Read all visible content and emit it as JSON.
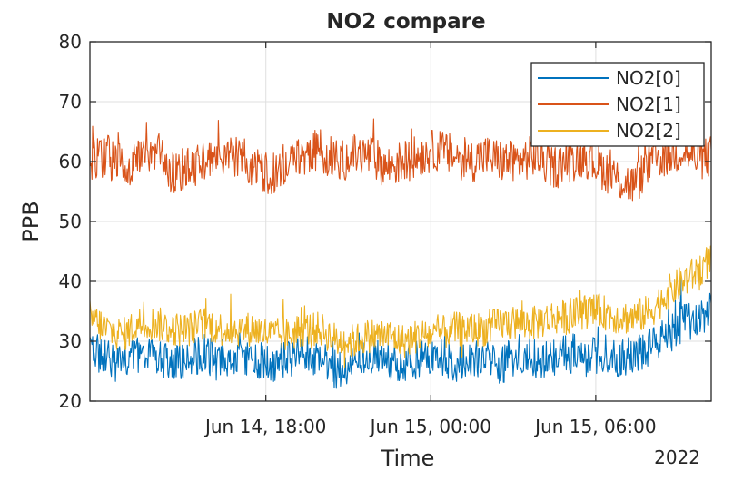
{
  "chart_data": {
    "type": "line",
    "title": "NO2 compare",
    "xlabel": "Time",
    "ylabel": "PPB",
    "x_secondary_label": "2022",
    "x_range_hours": [
      -6.4,
      16.2
    ],
    "x_ticks": [
      {
        "label": "Jun 14, 18:00",
        "hours": 0
      },
      {
        "label": "Jun 15, 00:00",
        "hours": 6
      },
      {
        "label": "Jun 15, 06:00",
        "hours": 12
      }
    ],
    "ylim": [
      20,
      80
    ],
    "y_ticks": [
      20,
      30,
      40,
      50,
      60,
      70,
      80
    ],
    "grid": true,
    "legend_position": "top-right",
    "series": [
      {
        "name": "NO2[0]",
        "color": "#0072BD",
        "x": [
          -6.4,
          -5.8,
          -5.2,
          -4.6,
          -4.0,
          -3.4,
          -2.8,
          -2.2,
          -1.6,
          -1.0,
          -0.4,
          0.2,
          0.8,
          1.4,
          2.0,
          2.6,
          3.2,
          3.8,
          4.4,
          5.0,
          5.6,
          6.2,
          6.8,
          7.4,
          8.0,
          8.6,
          9.2,
          9.8,
          10.4,
          11.0,
          11.6,
          12.2,
          12.8,
          13.4,
          14.0,
          14.6,
          15.2,
          15.8,
          16.2
        ],
        "values": [
          29,
          27,
          26,
          28,
          27,
          26,
          27,
          28,
          26,
          27,
          27,
          26,
          27,
          28,
          27,
          25,
          26,
          27,
          27,
          26,
          27,
          28,
          26,
          27,
          27,
          26,
          28,
          27,
          27,
          28,
          27,
          28,
          27,
          28,
          29,
          31,
          33,
          34,
          35
        ]
      },
      {
        "name": "NO2[1]",
        "color": "#D95319",
        "x": [
          -6.4,
          -5.8,
          -5.2,
          -4.6,
          -4.0,
          -3.4,
          -2.8,
          -2.2,
          -1.6,
          -1.0,
          -0.4,
          0.2,
          0.8,
          1.4,
          2.0,
          2.6,
          3.2,
          3.8,
          4.4,
          5.0,
          5.6,
          6.2,
          6.8,
          7.4,
          8.0,
          8.6,
          9.2,
          9.8,
          10.4,
          11.0,
          11.6,
          12.2,
          12.8,
          13.4,
          14.0,
          14.6,
          15.2,
          15.8,
          16.2
        ],
        "values": [
          60,
          61,
          59,
          60,
          62,
          58,
          59,
          60,
          60,
          61,
          59,
          58,
          60,
          61,
          62,
          60,
          61,
          61,
          59,
          60,
          61,
          62,
          61,
          60,
          61,
          60,
          60,
          61,
          59,
          60,
          61,
          59,
          57,
          56,
          60,
          61,
          62,
          60,
          61
        ]
      },
      {
        "name": "NO2[2]",
        "color": "#EDB120",
        "x": [
          -6.4,
          -5.8,
          -5.2,
          -4.6,
          -4.0,
          -3.4,
          -2.8,
          -2.2,
          -1.6,
          -1.0,
          -0.4,
          0.2,
          0.8,
          1.4,
          2.0,
          2.6,
          3.2,
          3.8,
          4.4,
          5.0,
          5.6,
          6.2,
          6.8,
          7.4,
          8.0,
          8.6,
          9.2,
          9.8,
          10.4,
          11.0,
          11.6,
          12.2,
          12.8,
          13.4,
          14.0,
          14.6,
          15.2,
          15.8,
          16.2
        ],
        "values": [
          34,
          32,
          31,
          33,
          33,
          32,
          32,
          33,
          32,
          32,
          32,
          31,
          31,
          32,
          32,
          30,
          30,
          31,
          31,
          30,
          31,
          31,
          32,
          32,
          32,
          33,
          33,
          33,
          34,
          34,
          35,
          35,
          34,
          34,
          35,
          38,
          40,
          42,
          44
        ]
      }
    ]
  }
}
